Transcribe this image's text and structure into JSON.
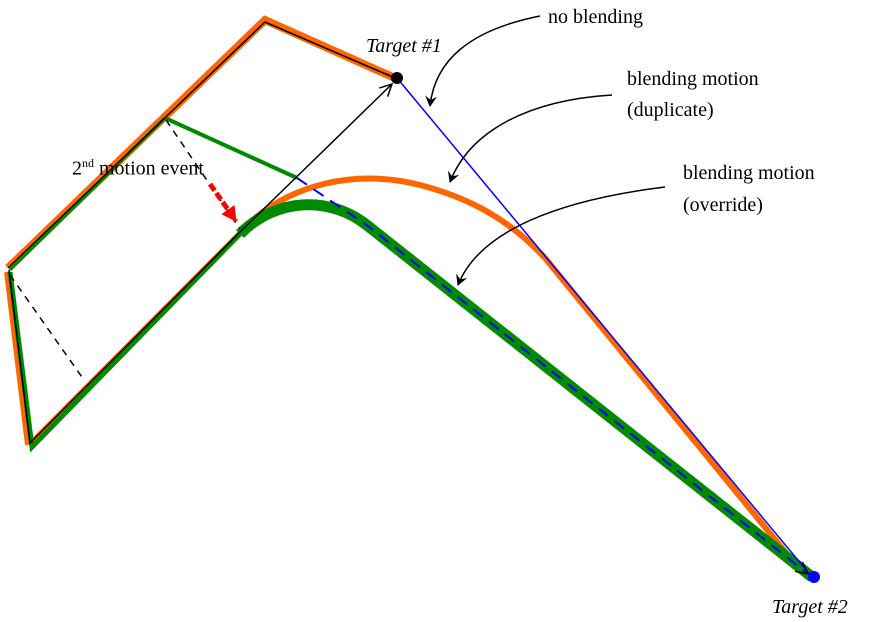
{
  "labels": {
    "target1": "Target #1",
    "target2": "Target #2",
    "no_blending": "no blending",
    "duplicate_line1": "blending motion",
    "duplicate_line2": "(duplicate)",
    "override_line1": "blending motion",
    "override_line2": "(override)",
    "motion_event_num": "2",
    "motion_event_sup": "nd",
    "motion_event_text": " motion event"
  },
  "colors": {
    "duplicate_path": "#ff6600",
    "override_path": "#008a00",
    "no_blending_path": "#0000ff",
    "motion_event_arrow": "#ff0000",
    "target2_dot": "#0000ff"
  }
}
